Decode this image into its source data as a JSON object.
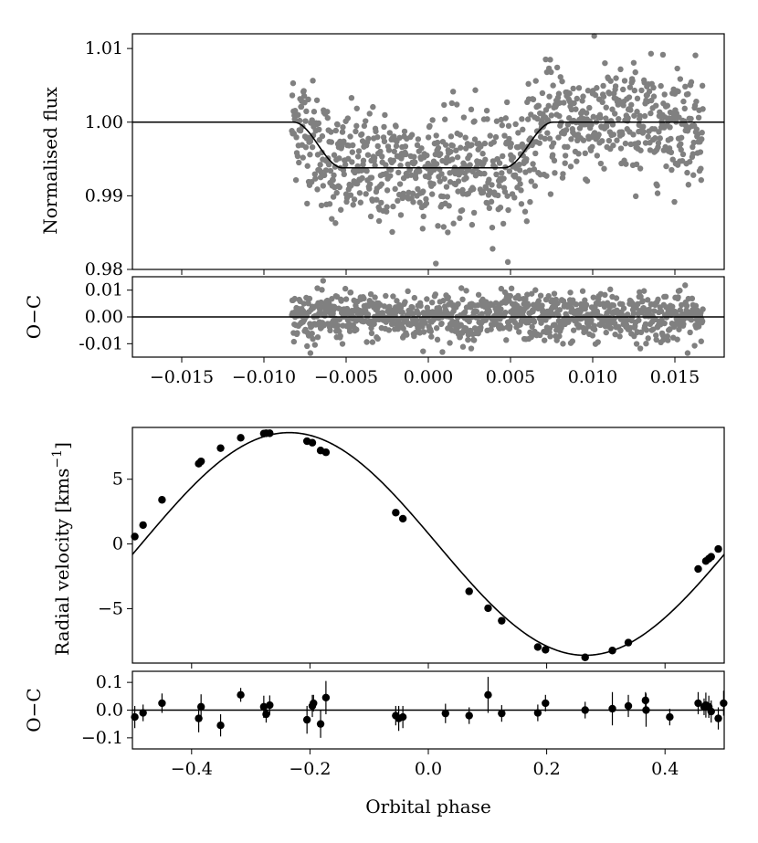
{
  "chart_data": [
    {
      "id": "lc",
      "type": "scatter",
      "ylabel": "Normalised flux",
      "xlim": [
        -0.018,
        0.018
      ],
      "ylim": [
        0.98,
        1.012
      ],
      "yticks": [
        0.98,
        0.99,
        1.0,
        1.01
      ],
      "ytick_labels": [
        "0.98",
        "0.99",
        "1.00",
        "1.01"
      ],
      "xticks": [
        -0.015,
        -0.01,
        -0.005,
        0.0,
        0.005,
        0.01,
        0.015
      ],
      "xtick_labels": [],
      "model": {
        "baseline": 1.0,
        "depth": 0.0062,
        "t1": -0.0082,
        "t2": -0.0052,
        "t3": 0.0046,
        "t4": 0.0076,
        "x_range": [
          -0.018,
          0.018
        ]
      },
      "data": {
        "x_range": [
          -0.0083,
          0.0167
        ],
        "n_points": 1000,
        "scatter_sd": 0.0038,
        "point_color": "#808080"
      },
      "grid": false
    },
    {
      "id": "lc_resid",
      "type": "scatter",
      "ylabel": "O−C",
      "xlim": [
        -0.018,
        0.018
      ],
      "ylim": [
        -0.015,
        0.015
      ],
      "yticks": [
        -0.01,
        0.0,
        0.01
      ],
      "ytick_labels": [
        "-0.01",
        "0.00",
        "0.01"
      ],
      "xticks": [
        -0.015,
        -0.01,
        -0.005,
        0.0,
        0.005,
        0.01,
        0.015
      ],
      "xtick_labels": [
        "−0.015",
        "−0.010",
        "−0.005",
        "0.000",
        "0.005",
        "0.010",
        "0.015"
      ],
      "data": {
        "x_range": [
          -0.0083,
          0.0167
        ],
        "n_points": 1000,
        "scatter_sd": 0.0045,
        "point_color": "#808080"
      },
      "grid": false
    },
    {
      "id": "rv",
      "type": "scatter",
      "ylabel": "Radial velocity [kms",
      "ylabel_sup": "−1",
      "ylabel_end": "]",
      "xlim": [
        -0.5,
        0.5
      ],
      "ylim": [
        -9.2,
        9.0
      ],
      "yticks": [
        -5,
        0,
        5
      ],
      "ytick_labels": [
        "−5",
        "0",
        "5"
      ],
      "xticks": [
        -0.4,
        -0.2,
        0.0,
        0.2,
        0.4
      ],
      "xtick_labels": [],
      "model": {
        "K": 8.6,
        "gamma": 0.0,
        "phase_zero": 0.015
      },
      "data": {
        "x": [
          -0.496,
          -0.482,
          -0.45,
          -0.388,
          -0.384,
          -0.351,
          -0.317,
          -0.278,
          -0.274,
          -0.268,
          -0.205,
          -0.196,
          -0.182,
          -0.173,
          -0.055,
          -0.043,
          0.069,
          0.101,
          0.124,
          0.185,
          0.198,
          0.265,
          0.311,
          0.338,
          0.456,
          0.469,
          0.474,
          0.478,
          0.49
        ],
        "y": [
          0.57,
          1.46,
          3.41,
          6.2,
          6.38,
          7.4,
          8.2,
          8.53,
          8.55,
          8.55,
          7.94,
          7.82,
          7.22,
          7.08,
          2.42,
          1.95,
          -3.66,
          -4.96,
          -5.93,
          -7.96,
          -8.17,
          -8.76,
          -8.23,
          -7.62,
          -1.93,
          -1.32,
          -1.14,
          -0.99,
          -0.39
        ]
      },
      "grid": false
    },
    {
      "id": "rv_resid",
      "type": "scatter",
      "ylabel": "O−C",
      "xlabel": "Orbital phase",
      "xlim": [
        -0.5,
        0.5
      ],
      "ylim": [
        -0.14,
        0.14
      ],
      "yticks": [
        -0.1,
        0.0,
        0.1
      ],
      "ytick_labels": [
        "−0.1",
        "0.0",
        "0.1"
      ],
      "xticks": [
        -0.4,
        -0.2,
        0.0,
        0.2,
        0.4
      ],
      "xtick_labels": [
        "−0.4",
        "−0.2",
        "0.0",
        "0.2",
        "0.4"
      ],
      "data": {
        "x": [
          -0.496,
          -0.482,
          -0.45,
          -0.388,
          -0.384,
          -0.351,
          -0.317,
          -0.278,
          -0.274,
          -0.268,
          -0.205,
          -0.196,
          -0.194,
          -0.182,
          -0.173,
          -0.055,
          -0.05,
          -0.043,
          0.029,
          0.069,
          0.101,
          0.124,
          0.185,
          0.198,
          0.265,
          0.311,
          0.338,
          0.367,
          0.368,
          0.408,
          0.456,
          0.466,
          0.469,
          0.474,
          0.478,
          0.49,
          0.499
        ],
        "y": [
          -0.025,
          -0.01,
          0.025,
          -0.03,
          0.012,
          -0.055,
          0.055,
          0.012,
          -0.015,
          0.018,
          -0.035,
          0.015,
          0.025,
          -0.05,
          0.045,
          -0.02,
          -0.03,
          -0.025,
          -0.012,
          -0.02,
          0.055,
          -0.012,
          -0.01,
          0.025,
          0.0,
          0.005,
          0.015,
          0.035,
          0.0,
          -0.025,
          0.025,
          0.012,
          0.018,
          0.012,
          -0.005,
          -0.03,
          0.025
        ],
        "err": [
          0.04,
          0.03,
          0.035,
          0.05,
          0.045,
          0.04,
          0.025,
          0.04,
          0.03,
          0.035,
          0.05,
          0.04,
          0.03,
          0.05,
          0.06,
          0.035,
          0.045,
          0.04,
          0.035,
          0.03,
          0.065,
          0.03,
          0.03,
          0.03,
          0.03,
          0.06,
          0.04,
          0.03,
          0.06,
          0.03,
          0.04,
          0.03,
          0.045,
          0.04,
          0.04,
          0.04,
          0.045
        ]
      },
      "grid": false
    }
  ]
}
